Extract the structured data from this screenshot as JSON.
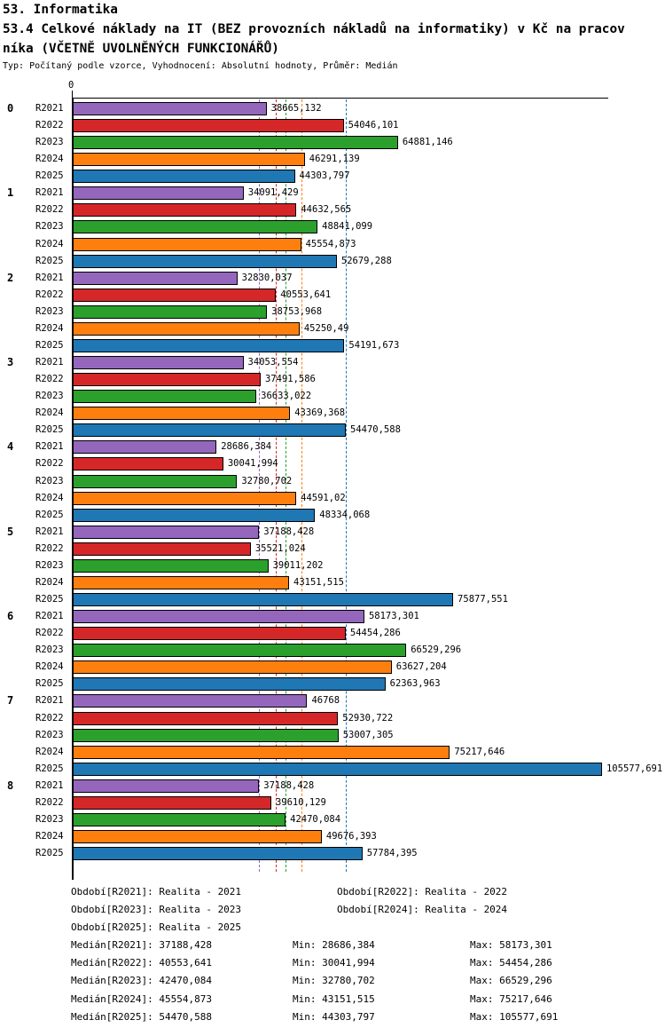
{
  "header": {
    "title_line1": "53. Informatika",
    "title_line2": "53.4 Celkové náklady na IT (BEZ provozních nákladů na informatiky) v Kč na pracov",
    "title_line3": "níka (VČETNĚ UVOLNĚNÝCH FUNKCIONÁŘŮ)",
    "type_line": "Typ: Počítaný podle vzorce, Vyhodnocení: Absolutní hodnoty, Průměr: Medián"
  },
  "chart_data": {
    "type": "bar",
    "orientation": "horizontal",
    "x_axis": {
      "origin_label": "0",
      "xlim": [
        0,
        106800
      ],
      "grid": false
    },
    "series": [
      "R2021",
      "R2022",
      "R2023",
      "R2024",
      "R2025"
    ],
    "colors": [
      "#9467bd",
      "#d62728",
      "#2ca02c",
      "#ff7f0e",
      "#1f77b4"
    ],
    "groups": [
      {
        "label": "0",
        "values": [
          38665.132,
          54046.101,
          64881.146,
          46291.139,
          44303.797
        ],
        "value_labels": [
          "38665,132",
          "54046,101",
          "64881,146",
          "46291,139",
          "44303,797"
        ]
      },
      {
        "label": "1",
        "values": [
          34091.429,
          44632.565,
          48841.099,
          45554.873,
          52679.288
        ],
        "value_labels": [
          "34091,429",
          "44632,565",
          "48841,099",
          "45554,873",
          "52679,288"
        ]
      },
      {
        "label": "2",
        "values": [
          32830.037,
          40553.641,
          38753.968,
          45250.49,
          54191.673
        ],
        "value_labels": [
          "32830,037",
          "40553,641",
          "38753,968",
          "45250,49",
          "54191,673"
        ]
      },
      {
        "label": "3",
        "values": [
          34053.554,
          37491.586,
          36633.022,
          43369.368,
          54470.588
        ],
        "value_labels": [
          "34053,554",
          "37491,586",
          "36633,022",
          "43369,368",
          "54470,588"
        ]
      },
      {
        "label": "4",
        "values": [
          28686.384,
          30041.994,
          32780.702,
          44591.02,
          48334.068
        ],
        "value_labels": [
          "28686,384",
          "30041,994",
          "32780,702",
          "44591,02",
          "48334,068"
        ]
      },
      {
        "label": "5",
        "values": [
          37188.428,
          35521.024,
          39011.202,
          43151.515,
          75877.551
        ],
        "value_labels": [
          "37188,428",
          "35521,024",
          "39011,202",
          "43151,515",
          "75877,551"
        ]
      },
      {
        "label": "6",
        "values": [
          58173.301,
          54454.286,
          66529.296,
          63627.204,
          62363.963
        ],
        "value_labels": [
          "58173,301",
          "54454,286",
          "66529,296",
          "63627,204",
          "62363,963"
        ]
      },
      {
        "label": "7",
        "values": [
          46768,
          52930.722,
          53007.305,
          75217.646,
          105577.691
        ],
        "value_labels": [
          "46768",
          "52930,722",
          "53007,305",
          "75217,646",
          "105577,691"
        ]
      },
      {
        "label": "8",
        "values": [
          37188.428,
          39610.129,
          42470.084,
          49676.393,
          57784.395
        ],
        "value_labels": [
          "37188,428",
          "39610,129",
          "42470,084",
          "49676,393",
          "57784,395"
        ]
      }
    ],
    "median_lines": {
      "R2021": 37188.428,
      "R2022": 40553.641,
      "R2023": 42470.084,
      "R2024": 45554.873,
      "R2025": 54470.588
    }
  },
  "legend": {
    "periods": [
      "Období[R2021]: Realita - 2021",
      "Období[R2022]: Realita - 2022",
      "Období[R2023]: Realita - 2023",
      "Období[R2024]: Realita - 2024",
      "Období[R2025]: Realita - 2025"
    ],
    "stats": [
      {
        "median": "Medián[R2021]: 37188,428",
        "min": "Min: 28686,384",
        "max": "Max: 58173,301"
      },
      {
        "median": "Medián[R2022]: 40553,641",
        "min": "Min: 30041,994",
        "max": "Max: 54454,286"
      },
      {
        "median": "Medián[R2023]: 42470,084",
        "min": "Min: 32780,702",
        "max": "Max: 66529,296"
      },
      {
        "median": "Medián[R2024]: 45554,873",
        "min": "Min: 43151,515",
        "max": "Max: 75217,646"
      },
      {
        "median": "Medián[R2025]: 54470,588",
        "min": "Min: 44303,797",
        "max": "Max: 105577,691"
      }
    ]
  }
}
